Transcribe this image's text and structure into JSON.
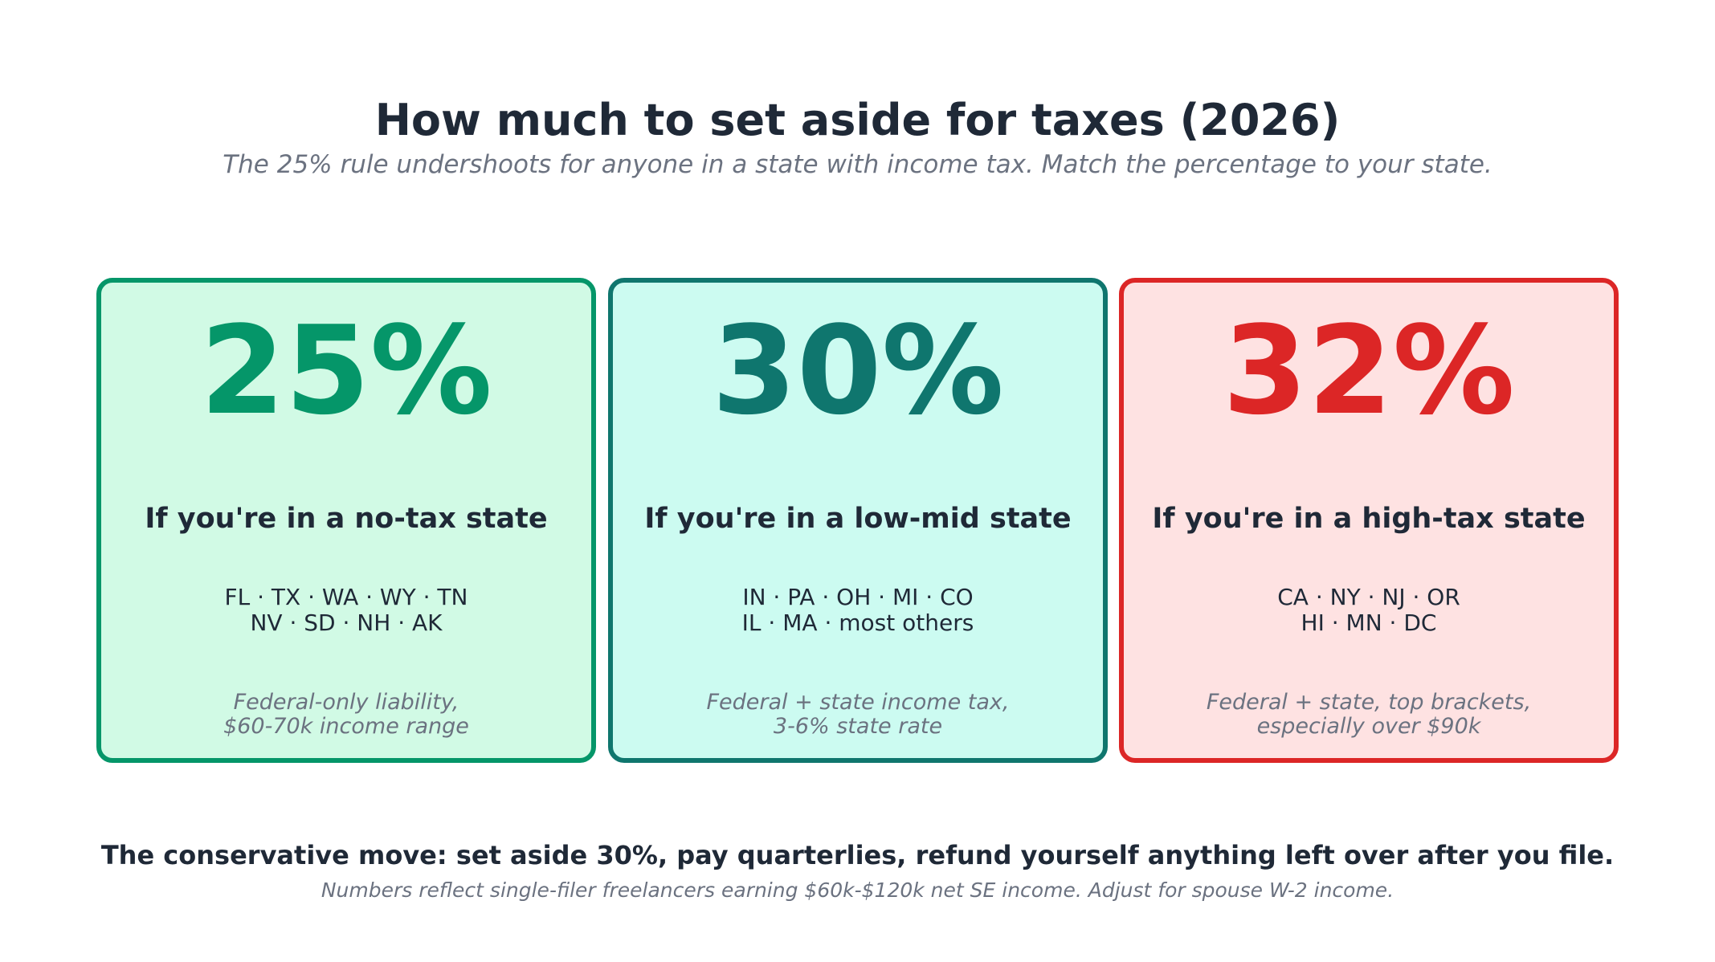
{
  "header": {
    "title": "How much to set aside for taxes (2026)",
    "subtitle": "The 25% rule undershoots for anyone in a state with income tax. Match the percentage to your state."
  },
  "cards": [
    {
      "percent": "25%",
      "heading": "If you're in a no-tax state",
      "states_line1": "FL · TX · WA · WY · TN",
      "states_line2": "NV · SD · NH · AK",
      "note_line1": "Federal-only liability,",
      "note_line2": "$60-70k income range",
      "accent_color": "#059669",
      "bg_color": "#d1fae5"
    },
    {
      "percent": "30%",
      "heading": "If you're in a low-mid state",
      "states_line1": "IN · PA · OH · MI · CO",
      "states_line2": "IL · MA · most others",
      "note_line1": "Federal + state income tax,",
      "note_line2": "3-6% state rate",
      "accent_color": "#0f766e",
      "bg_color": "#ccfbf1"
    },
    {
      "percent": "32%",
      "heading": "If you're in a high-tax state",
      "states_line1": "CA · NY · NJ · OR",
      "states_line2": "HI · MN · DC",
      "note_line1": "Federal + state, top brackets,",
      "note_line2": "especially over $90k",
      "accent_color": "#dc2626",
      "bg_color": "#fee2e2"
    }
  ],
  "footer": {
    "main": "The conservative move: set aside 30%, pay quarterlies, refund yourself anything left over after you file.",
    "note": "Numbers reflect single-filer freelancers earning $60k-$120k net SE income. Adjust for spouse W-2 income."
  }
}
